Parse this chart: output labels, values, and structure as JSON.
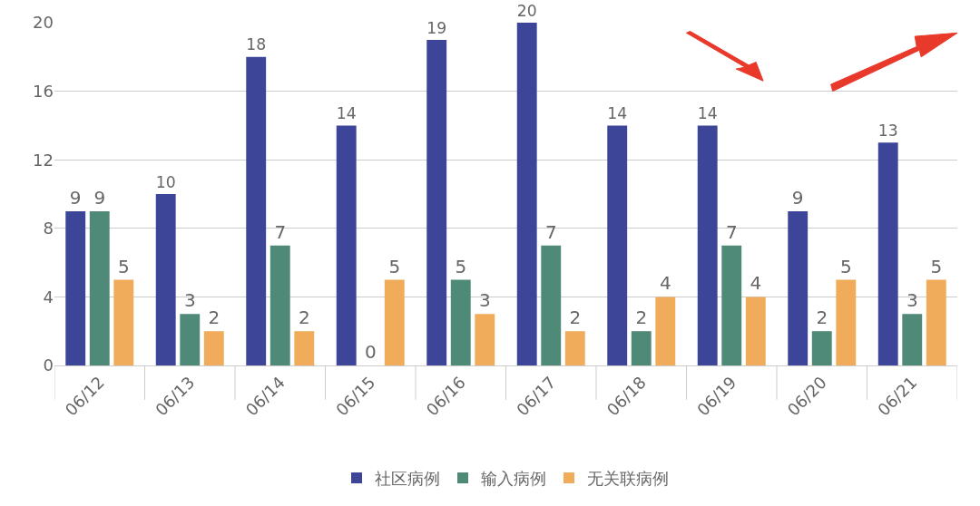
{
  "chart_data": {
    "type": "bar",
    "categories": [
      "06/12",
      "06/13",
      "06/14",
      "06/15",
      "06/16",
      "06/17",
      "06/18",
      "06/19",
      "06/20",
      "06/21"
    ],
    "series": [
      {
        "name": "社区病例",
        "color": "#3d4599",
        "values": [
          9,
          10,
          18,
          14,
          19,
          20,
          14,
          14,
          9,
          13
        ]
      },
      {
        "name": "输入病例",
        "color": "#4f8a78",
        "values": [
          9,
          3,
          7,
          0,
          5,
          7,
          2,
          7,
          2,
          3
        ]
      },
      {
        "name": "无关联病例",
        "color": "#f0ac5a",
        "values": [
          5,
          2,
          2,
          5,
          3,
          2,
          4,
          4,
          5,
          5
        ]
      }
    ],
    "ylim": [
      0,
      20
    ],
    "yticks": [
      0,
      4,
      8,
      12,
      16,
      20
    ],
    "grid": "y",
    "legend": "bottom",
    "data_labels": true
  }
}
